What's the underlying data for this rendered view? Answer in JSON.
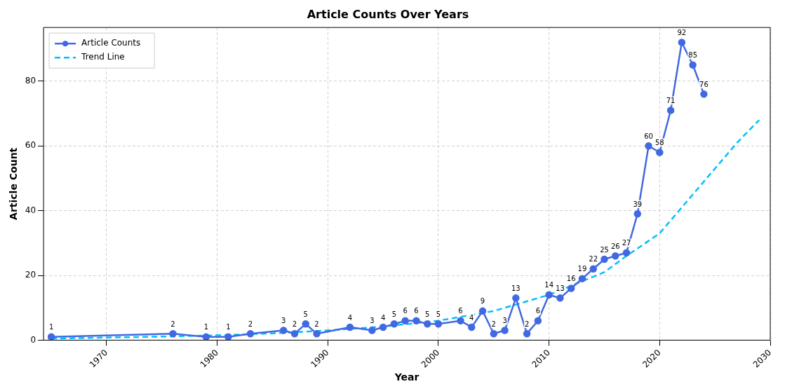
{
  "chart_data": {
    "type": "line",
    "title": "Article Counts Over Years",
    "xlabel": "Year",
    "ylabel": "Article Count",
    "xlim": [
      1964.3,
      2030
    ],
    "xticks": [
      1970,
      1980,
      1990,
      2000,
      2010,
      2020,
      2030
    ],
    "ylim": [
      0,
      96.6
    ],
    "yticks": [
      0,
      20,
      40,
      60,
      80
    ],
    "grid": true,
    "legend": "top left",
    "series": [
      {
        "name": "Article Counts",
        "color": "#4169e1",
        "marker": "circle",
        "line_style": "solid",
        "x": [
          1965,
          1976,
          1979,
          1981,
          1983,
          1986,
          1987,
          1988,
          1989,
          1992,
          1994,
          1995,
          1996,
          1997,
          1998,
          1999,
          2000,
          2002,
          2003,
          2004,
          2005,
          2006,
          2007,
          2008,
          2009,
          2010,
          2011,
          2012,
          2013,
          2014,
          2015,
          2016,
          2017,
          2018,
          2019,
          2020,
          2021,
          2022,
          2023,
          2024
        ],
        "values": [
          1,
          2,
          1,
          1,
          2,
          3,
          2,
          5,
          2,
          4,
          3,
          4,
          5,
          6,
          6,
          5,
          5,
          6,
          4,
          9,
          2,
          3,
          13,
          2,
          6,
          14,
          13,
          16,
          19,
          22,
          25,
          26,
          27,
          39,
          60,
          58,
          71,
          92,
          85,
          76
        ],
        "value_labels": [
          "1",
          "2",
          "1",
          "1",
          "2",
          "3",
          "2",
          "5",
          "2",
          "4",
          "3",
          "4",
          "5",
          "6",
          "6",
          "5",
          "5",
          "6",
          "4",
          "9",
          "2",
          "3",
          "13",
          "2",
          "6",
          "14",
          "13",
          "16",
          "19",
          "22",
          "25",
          "26",
          "27",
          "39",
          "60",
          "58",
          "71",
          "92",
          "85",
          "76"
        ]
      },
      {
        "name": "Trend Line",
        "color": "#00bfff",
        "marker": "none",
        "line_style": "dashed",
        "x": [
          1965,
          1970,
          1975,
          1980,
          1985,
          1990,
          1995,
          2000,
          2005,
          2010,
          2015,
          2017,
          2020,
          2023,
          2025,
          2027,
          2029
        ],
        "values": [
          0.5,
          0.8,
          1.1,
          1.5,
          2.1,
          3,
          4.2,
          6,
          9,
          14,
          21,
          26,
          33,
          45,
          53,
          61,
          68
        ]
      }
    ]
  }
}
